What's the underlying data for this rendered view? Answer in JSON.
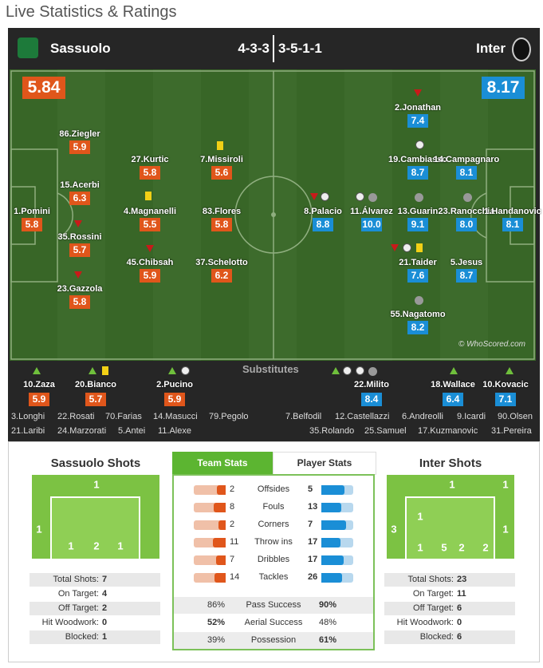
{
  "header": {
    "title": "Live Statistics & Ratings"
  },
  "substitutes_label": "Substitutes",
  "watermark": "© WhoScored.com",
  "home": {
    "name": "Sassuolo",
    "formation": "4-3-3",
    "rating": 5.84,
    "players": [
      {
        "name": "1.Pomini",
        "rating": "5.8"
      },
      {
        "name": "86.Ziegler",
        "rating": "5.9"
      },
      {
        "name": "15.Acerbi",
        "rating": "6.3"
      },
      {
        "name": "35.Rossini",
        "rating": "5.7"
      },
      {
        "name": "23.Gazzola",
        "rating": "5.8"
      },
      {
        "name": "27.Kurtic",
        "rating": "5.8"
      },
      {
        "name": "4.Magnanelli",
        "rating": "5.5"
      },
      {
        "name": "45.Chibsah",
        "rating": "5.9"
      },
      {
        "name": "7.Missiroli",
        "rating": "5.6"
      },
      {
        "name": "83.Flores",
        "rating": "5.8"
      },
      {
        "name": "37.Schelotto",
        "rating": "6.2"
      }
    ],
    "substitutes": [
      {
        "name": "10.Zaza",
        "rating": "5.9"
      },
      {
        "name": "20.Bianco",
        "rating": "5.7"
      },
      {
        "name": "2.Pucino",
        "rating": "5.9"
      }
    ],
    "bench": [
      "3.Longhi",
      "22.Rosati",
      "70.Farias",
      "14.Masucci",
      "79.Pegolo",
      "21.Laribi",
      "24.Marzorati",
      "5.Antei",
      "11.Alexe"
    ],
    "shots": {
      "title": "Sassuolo Shots",
      "zones": [
        1,
        1,
        1,
        2,
        1
      ],
      "stats": [
        {
          "label": "Total Shots:",
          "value": 7
        },
        {
          "label": "On Target:",
          "value": 4
        },
        {
          "label": "Off Target:",
          "value": 2
        },
        {
          "label": "Hit Woodwork:",
          "value": 0
        },
        {
          "label": "Blocked:",
          "value": 1
        }
      ]
    }
  },
  "away": {
    "name": "Inter",
    "formation": "3-5-1-1",
    "rating": 8.17,
    "players": [
      {
        "name": "2.Jonathan",
        "rating": "7.4"
      },
      {
        "name": "19.Cambiasso",
        "rating": "8.7"
      },
      {
        "name": "14.Campagnaro",
        "rating": "8.1"
      },
      {
        "name": "8.Palacio",
        "rating": "8.8"
      },
      {
        "name": "11.Álvarez",
        "rating": "10.0"
      },
      {
        "name": "13.Guarin",
        "rating": "9.1"
      },
      {
        "name": "23.Ranocchia",
        "rating": "8.0"
      },
      {
        "name": "1.Handanovic",
        "rating": "8.1"
      },
      {
        "name": "21.Taider",
        "rating": "7.6"
      },
      {
        "name": "5.Jesus",
        "rating": "8.7"
      },
      {
        "name": "55.Nagatomo",
        "rating": "8.2"
      }
    ],
    "substitutes": [
      {
        "name": "22.Milito",
        "rating": "8.4"
      },
      {
        "name": "18.Wallace",
        "rating": "6.4"
      },
      {
        "name": "10.Kovacic",
        "rating": "7.1"
      }
    ],
    "bench": [
      "7.Belfodil",
      "12.Castellazzi",
      "6.Andreolli",
      "9.Icardi",
      "90.Olsen",
      "35.Rolando",
      "25.Samuel",
      "17.Kuzmanovic",
      "31.Pereira"
    ],
    "shots": {
      "title": "Inter Shots",
      "zones": [
        1,
        1,
        3,
        1,
        1,
        1,
        5,
        2,
        2
      ],
      "stats": [
        {
          "label": "Total Shots:",
          "value": 23
        },
        {
          "label": "On Target:",
          "value": 11
        },
        {
          "label": "Off Target:",
          "value": 6
        },
        {
          "label": "Hit Woodwork:",
          "value": 0
        },
        {
          "label": "Blocked:",
          "value": 6
        }
      ]
    }
  },
  "tabs": [
    "Team Stats",
    "Player Stats"
  ],
  "team_stats": {
    "counts": [
      {
        "label": "Offsides",
        "home": 2,
        "away": 5
      },
      {
        "label": "Fouls",
        "home": 8,
        "away": 13
      },
      {
        "label": "Corners",
        "home": 2,
        "away": 7
      },
      {
        "label": "Throw ins",
        "home": 11,
        "away": 17
      },
      {
        "label": "Dribbles",
        "home": 7,
        "away": 17
      },
      {
        "label": "Tackles",
        "home": 14,
        "away": 26
      }
    ],
    "percentages": [
      {
        "label": "Pass Success",
        "home": 86,
        "home_label": "86%",
        "away": 90,
        "away_label": "90%"
      },
      {
        "label": "Aerial Success",
        "home": 52,
        "home_label": "52%",
        "away": 48,
        "away_label": "48%"
      },
      {
        "label": "Possession",
        "home": 39,
        "home_label": "39%",
        "away": 61,
        "away_label": "61%"
      }
    ]
  }
}
